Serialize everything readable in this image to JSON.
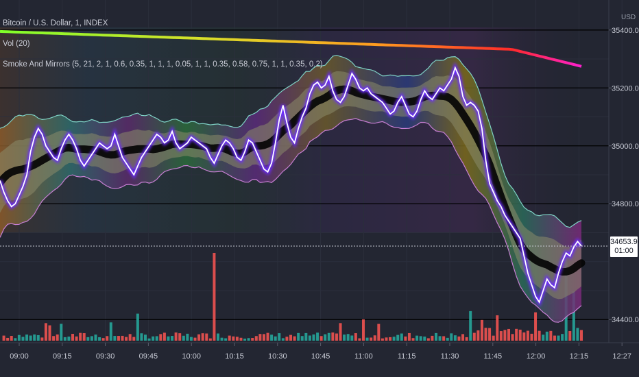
{
  "header": {
    "symbol_line": "Bitcoin / U.S. Dollar, 1, INDEX",
    "volume_line": "Vol (20)",
    "indicator_line": "Smoke And Mirrors (5, 21, 2, 1, 0.6, 0.35, 1, 1, 1, 0.05, 1, 1, 0.35, 0.58, 0.75, 1, 1, 0.35, 0.2)"
  },
  "axis": {
    "currency": "USD"
  },
  "last_price": {
    "value": "34653.94",
    "countdown": "01:00"
  },
  "colors": {
    "background": "#232632",
    "grid": "#2e3240",
    "up_volume": "#26a69a",
    "down_volume": "#ef5350",
    "price_line": "#ffffff",
    "price_glow": "#6a2cff"
  },
  "chart_data": {
    "type": "line",
    "x_tick_labels": [
      "09:00",
      "09:15",
      "09:30",
      "09:45",
      "10:00",
      "10:15",
      "10:30",
      "10:45",
      "11:00",
      "11:15",
      "11:30",
      "11:45",
      "12:00",
      "12:15",
      "12:27"
    ],
    "y_tick_labels": [
      "35400.00",
      "35200.00",
      "35000.00",
      "34800.00",
      "34400.00"
    ],
    "ylim": [
      34320,
      35480
    ],
    "series": [
      {
        "values": [
          34880,
          34840,
          34810,
          34790,
          34800,
          34830,
          34860,
          34900,
          34980,
          35030,
          35060,
          35040,
          35000,
          34980,
          34960,
          34950,
          34990,
          35020,
          35040,
          35020,
          34990,
          34950,
          34930,
          34950,
          34970,
          34990,
          35010,
          35000,
          34990,
          35000,
          35040,
          35000,
          34960,
          34940,
          34920,
          34900,
          34930,
          34960,
          34980,
          35000,
          35020,
          35040,
          35030,
          35010,
          35020,
          35050,
          35010,
          34990,
          35000,
          35010,
          35030,
          35020,
          35010,
          35000,
          34990,
          34960,
          34940,
          34970,
          35000,
          35020,
          35010,
          34990,
          34960,
          34950,
          34980,
          35020,
          35010,
          34980,
          34950,
          34920,
          34910,
          34940,
          35010,
          35090,
          35140,
          35080,
          35030,
          35010,
          35060,
          35100,
          35130,
          35180,
          35210,
          35220,
          35200,
          35210,
          35240,
          35190,
          35160,
          35150,
          35170,
          35210,
          35250,
          35230,
          35200,
          35190,
          35200,
          35180,
          35170,
          35160,
          35150,
          35130,
          35110,
          35120,
          35150,
          35170,
          35140,
          35110,
          35100,
          35120,
          35160,
          35190,
          35170,
          35160,
          35180,
          35200,
          35190,
          35210,
          35230,
          35270,
          35240,
          35170,
          35140,
          35150,
          35140,
          35120,
          35060,
          34950,
          34870,
          34840,
          34810,
          34790,
          34760,
          34740,
          34720,
          34700,
          34680,
          34620,
          34560,
          34520,
          34480,
          34460,
          34500,
          34540,
          34520,
          34510,
          34560,
          34600,
          34630,
          34620,
          34650,
          34670,
          34653.94
        ]
      }
    ]
  }
}
